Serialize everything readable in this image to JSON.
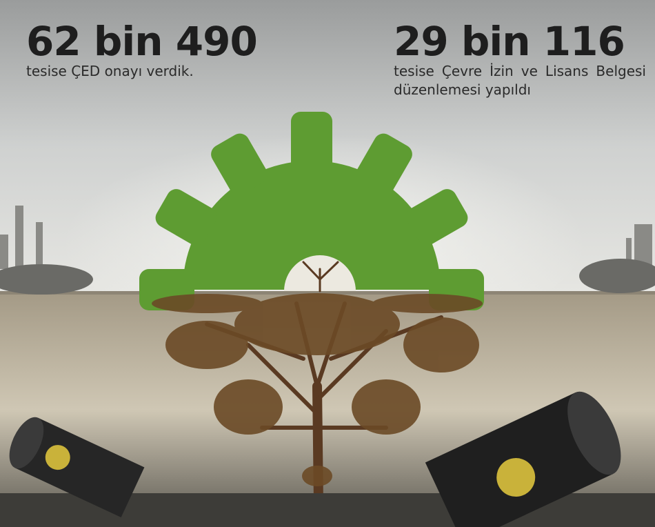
{
  "stats": [
    {
      "value": "62 bin 490",
      "text": "tesise ÇED onayı verdik."
    },
    {
      "value": "29 bin 116",
      "text": "tesise Çevre İzin ve Lisans Belgesi düzenlemesi yapıldı"
    }
  ]
}
